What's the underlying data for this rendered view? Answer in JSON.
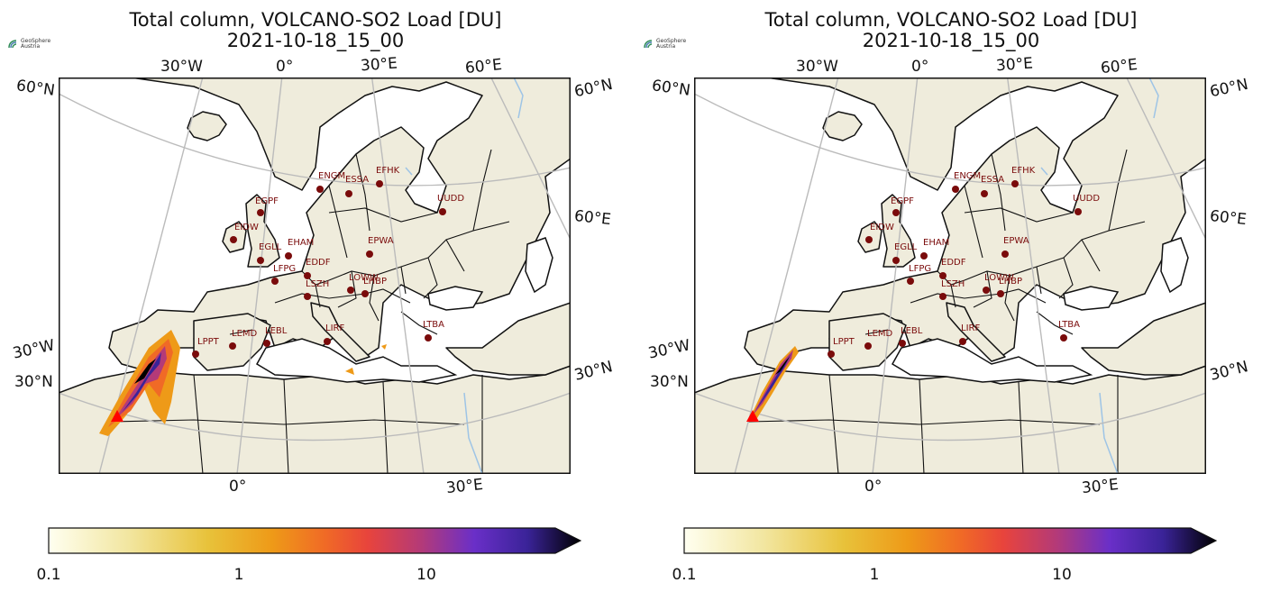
{
  "panels": [
    {
      "title": "Total column, VOLCANO-SO2 Load [DU]",
      "time": "2021-10-18_15_00",
      "logo": {
        "name": "GeoSphere",
        "sub": "Austria"
      },
      "lon_ticks_top": [
        "30°W",
        "0°",
        "30°E",
        "60°E"
      ],
      "lon_ticks_bottom": [
        "0°",
        "30°E"
      ],
      "lat_ticks_left": [
        "60°N",
        "30°W",
        "30°N"
      ],
      "lat_ticks_right": [
        "60°N",
        "60°E",
        "30°N"
      ],
      "airports": [
        "EGPF",
        "ENGM",
        "ESSA",
        "EFHK",
        "UUDD",
        "EIDW",
        "EGLL",
        "EHAM",
        "EPWA",
        "EDDF",
        "LFPG",
        "LOWW",
        "LHBP",
        "LSZH",
        "LTBA",
        "LIRF",
        "LEMD",
        "LEBL",
        "LPPT"
      ],
      "colorbar_ticks": [
        "0.1",
        "1",
        "10"
      ]
    },
    {
      "title": "Total column, VOLCANO-SO2 Load [DU]",
      "time": "2021-10-18_15_00",
      "logo": {
        "name": "GeoSphere",
        "sub": "Austria"
      },
      "lon_ticks_top": [
        "30°W",
        "0°",
        "30°E",
        "60°E"
      ],
      "lon_ticks_bottom": [
        "0°",
        "30°E"
      ],
      "lat_ticks_left": [
        "60°N",
        "30°W",
        "30°N"
      ],
      "lat_ticks_right": [
        "60°N",
        "60°E",
        "30°N"
      ],
      "airports": [
        "EGPF",
        "ENGM",
        "ESSA",
        "EFHK",
        "UUDD",
        "EIDW",
        "EGLL",
        "EHAM",
        "EPWA",
        "EDDF",
        "LFPG",
        "LOWW",
        "LHBP",
        "LSZH",
        "LTBA",
        "LIRF",
        "LEMD",
        "LEBL",
        "LPPT"
      ],
      "colorbar_ticks": [
        "0.1",
        "1",
        "10"
      ]
    }
  ],
  "colors": {
    "land": "#efecdc",
    "coast": "#111111",
    "grid": "#bbbbbb",
    "airport": "#7a0b0b",
    "volcano": "#ff0000",
    "river": "#9ec4e6"
  },
  "colormap": [
    "#fffff0",
    "#f2e6a0",
    "#e8c23a",
    "#ee9a18",
    "#f06a26",
    "#e8443c",
    "#b43a78",
    "#6a2fc8",
    "#3a2398",
    "#000000"
  ]
}
